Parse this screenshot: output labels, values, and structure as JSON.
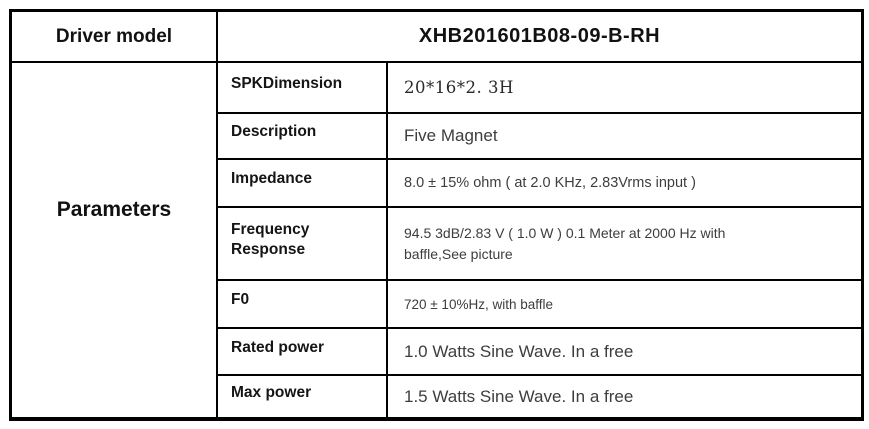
{
  "header": {
    "label": "Driver model",
    "model": "XHB201601B08-09-B-RH"
  },
  "section_label": "Parameters",
  "rows": [
    {
      "label": "SPKDimension",
      "value": "20*16*2. 3H"
    },
    {
      "label": "Description",
      "value": "Five Magnet"
    },
    {
      "label": "Impedance",
      "value": "8.0 ± 15% ohm ( at 2.0 KHz,  2.83Vrms input )"
    },
    {
      "label": "Frequency Response",
      "value": "94.5   3dB/2.83 V ( 1.0 W ) 0.1 Meter at 2000 Hz with baffle,See picture"
    },
    {
      "label": "F0",
      "value": "720 ± 10%Hz, with baffle"
    },
    {
      "label": "Rated power",
      "value": "1.0 Watts Sine Wave. In a free"
    },
    {
      "label": "Max power",
      "value": "1.5 Watts Sine Wave. In a free"
    }
  ],
  "colors": {
    "border": "#000000",
    "label_text": "#151515",
    "value_text": "#3d3d3d",
    "background": "#ffffff"
  }
}
